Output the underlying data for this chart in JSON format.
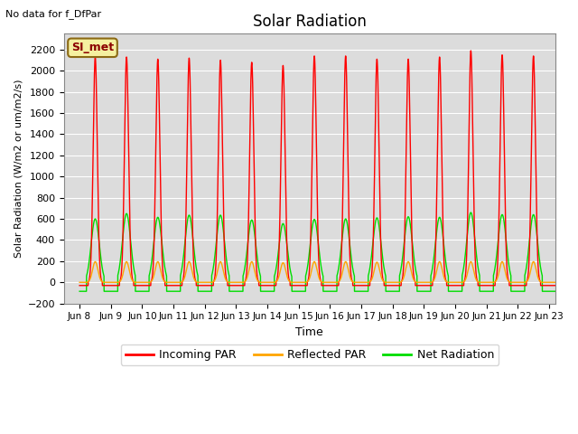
{
  "title": "Solar Radiation",
  "subtitle": "No data for f_DfPar",
  "ylabel": "Solar Radiation (W/m2 or um/m2/s)",
  "xlabel": "Time",
  "xlim_days": [
    7.5,
    23.2
  ],
  "ylim": [
    -200,
    2350
  ],
  "yticks": [
    -200,
    0,
    200,
    400,
    600,
    800,
    1000,
    1200,
    1400,
    1600,
    1800,
    2000,
    2200
  ],
  "bg_color": "#dcdcdc",
  "legend_label_box": "SI_met",
  "legend_entries": [
    "Incoming PAR",
    "Reflected PAR",
    "Net Radiation"
  ],
  "line_colors": [
    "#ff0000",
    "#ffa500",
    "#00dd00"
  ],
  "xtick_labels": [
    "Jun 8",
    "Jun 9",
    "Jun 10",
    "Jun 11",
    "Jun 12",
    "Jun 13",
    "Jun 14",
    "Jun 15",
    "Jun 16",
    "Jun 17",
    "Jun 18",
    "Jun 19",
    "Jun 20",
    "Jun 21",
    "Jun 22",
    "Jun 23"
  ],
  "xtick_positions": [
    8,
    9,
    10,
    11,
    12,
    13,
    14,
    15,
    16,
    17,
    18,
    19,
    20,
    21,
    22,
    23
  ],
  "day_peaks_par": [
    2130,
    2130,
    2110,
    2120,
    2100,
    2080,
    2050,
    2140,
    2140,
    2110,
    2110,
    2130,
    2190,
    2150,
    2140,
    2140
  ],
  "day_peaks_net": [
    600,
    650,
    615,
    635,
    635,
    590,
    555,
    595,
    600,
    610,
    620,
    615,
    660,
    640,
    640,
    610
  ],
  "day_peaks_reflected": [
    195,
    195,
    195,
    195,
    195,
    195,
    185,
    195,
    195,
    190,
    195,
    195,
    195,
    195,
    195,
    195
  ],
  "night_par": -30,
  "night_net": -85,
  "day_start": 8,
  "num_days": 16
}
